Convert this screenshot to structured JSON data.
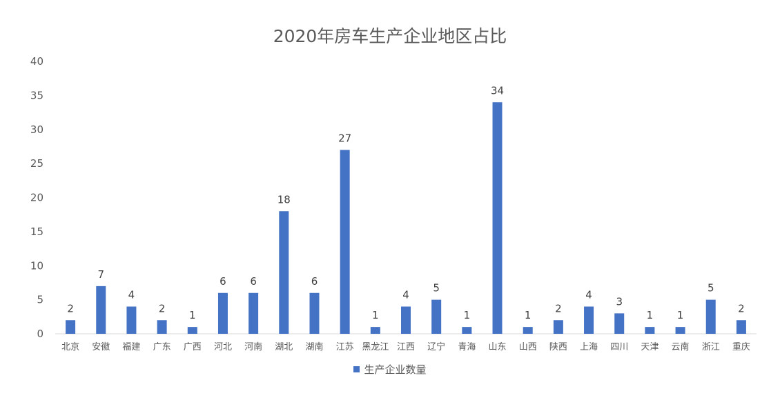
{
  "chart_data": {
    "type": "bar",
    "title": "2020年房车生产企业地区占比",
    "categories": [
      "北京",
      "安徽",
      "福建",
      "广东",
      "广西",
      "河北",
      "河南",
      "湖北",
      "湖南",
      "江苏",
      "黑龙江",
      "江西",
      "辽宁",
      "青海",
      "山东",
      "山西",
      "陕西",
      "上海",
      "四川",
      "天津",
      "云南",
      "浙江",
      "重庆"
    ],
    "series": [
      {
        "name": "生产企业数量",
        "values": [
          2,
          7,
          4,
          2,
          1,
          6,
          6,
          18,
          6,
          27,
          1,
          4,
          5,
          1,
          34,
          1,
          2,
          4,
          3,
          1,
          1,
          5,
          2
        ]
      }
    ],
    "ylim": [
      0,
      40
    ],
    "yticks": [
      0,
      5,
      10,
      15,
      20,
      25,
      30,
      35,
      40
    ],
    "grid": false,
    "legend_position": "bottom",
    "bar_color": "#4472C4",
    "axis_color": "#D9D9D9"
  }
}
